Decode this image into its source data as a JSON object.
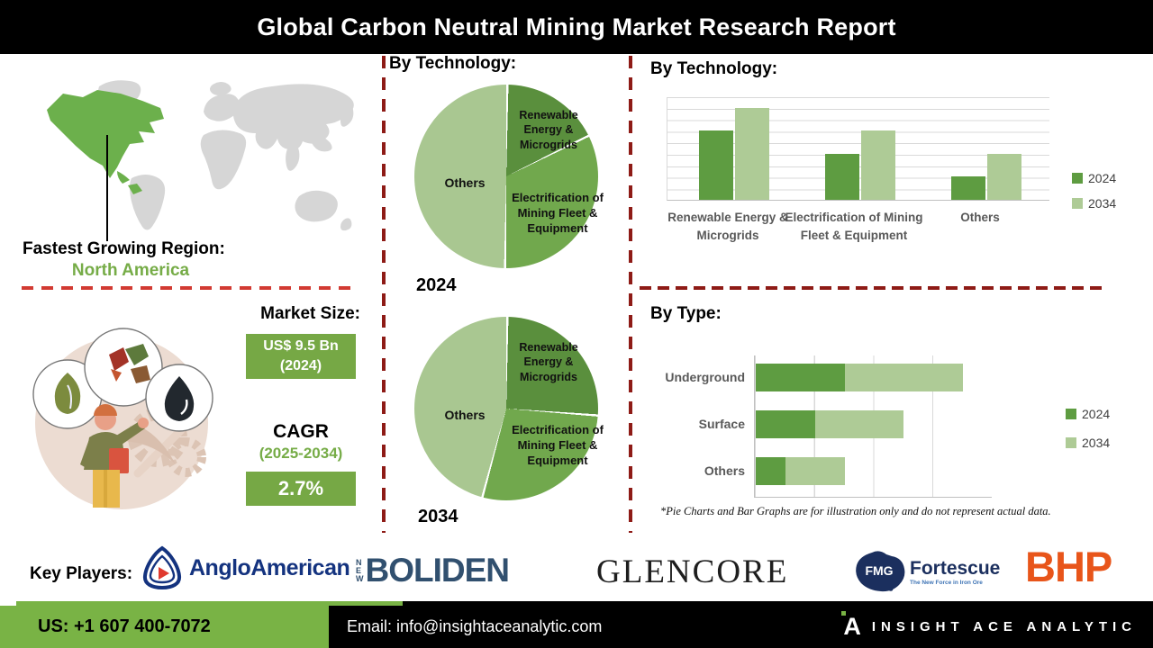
{
  "header": {
    "title": "Global Carbon Neutral Mining Market Research Report"
  },
  "region_panel": {
    "label": "Fastest Growing Region:",
    "value": "North America"
  },
  "market_panel": {
    "heading": "Market Size:",
    "size_value": "US$ 9.5 Bn",
    "size_year": "(2024)",
    "cagr_label": "CAGR",
    "cagr_period": "(2025-2034)",
    "cagr_value": "2.7%"
  },
  "pie_section": {
    "heading": "By Technology:",
    "pie_2024_label": "2024",
    "pie_2034_label": "2034"
  },
  "bar_section": {
    "heading": "By Technology:"
  },
  "type_section": {
    "heading": "By Type:"
  },
  "footnote": "*Pie Charts and Bar Graphs are for illustration only and do not represent actual data.",
  "key_players": {
    "label": "Key Players:",
    "anglo_text": "AngloAmerican",
    "boliden_new": "NEW",
    "boliden_text": "BOLIDEN",
    "glencore_text": "GLENCORE",
    "fmg_text": "FMG",
    "fortescue_text": "Fortescue",
    "fortescue_tagline": "The New Force in Iron Ore",
    "bhp_text": "BHP"
  },
  "footer": {
    "phone": "US: +1 607 400-7072",
    "email": "Email: info@insightaceanalytic.com",
    "brand": "INSIGHT ACE ANALYTIC",
    "brand_glyph": "A"
  },
  "colors": {
    "pie": [
      "#5a8f3d",
      "#71a84d",
      "#a9c791"
    ],
    "bar_2024": "#5e9c41",
    "bar_2034": "#aecb96",
    "map_highlight": "#6cb04c",
    "map_base": "#d6d6d6",
    "accent_green": "#76a845",
    "dash_red": "#8e1b16",
    "footer_green": "#79b345"
  },
  "chart_data": [
    {
      "type": "pie",
      "title": "By Technology:",
      "year": "2024",
      "labels": [
        "Renewable Energy & Microgrids",
        "Electrification of Mining Fleet & Equipment",
        "Others"
      ],
      "values_pct": [
        17.5,
        32.5,
        50
      ],
      "note": "illustrative only, no data labels shown"
    },
    {
      "type": "pie",
      "title": "By Technology:",
      "year": "2034",
      "labels": [
        "Renewable Energy & Microgrids",
        "Electrification of Mining Fleet & Equipment",
        "Others"
      ],
      "values_pct": [
        26,
        28,
        46
      ],
      "note": "illustrative only, no data labels shown"
    },
    {
      "type": "bar",
      "title": "By Technology:",
      "categories": [
        "Renewable Energy & Microgrids",
        "Electrification of Mining Fleet & Equipment",
        "Others"
      ],
      "series": [
        {
          "name": "2024",
          "values": [
            6,
            4,
            2
          ]
        },
        {
          "name": "2034",
          "values": [
            8,
            6,
            4
          ]
        }
      ],
      "ylim": [
        0,
        9
      ],
      "grid": true,
      "legend_position": "right",
      "value_axis_labels": false,
      "note": "illustrative only, unlabeled value axis; values estimated from gridlines"
    },
    {
      "type": "bar",
      "orientation": "horizontal-stacked",
      "title": "By Type:",
      "categories": [
        "Underground",
        "Surface",
        "Others"
      ],
      "series": [
        {
          "name": "2024",
          "values": [
            1.5,
            1.0,
            0.5
          ]
        },
        {
          "name": "2034",
          "values": [
            2.0,
            1.5,
            1.0
          ]
        }
      ],
      "xlim": [
        0,
        4
      ],
      "grid": true,
      "legend_position": "right",
      "value_axis_labels": false,
      "note": "illustrative only, unlabeled value axis; values estimated from gridlines"
    }
  ]
}
